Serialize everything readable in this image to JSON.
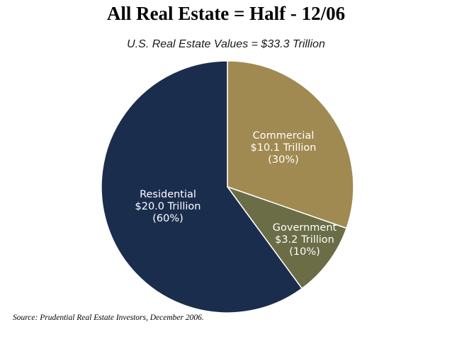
{
  "title": "All Real Estate = Half -  12/06",
  "subtitle": "U.S. Real Estate Values = $33.3 Trillion",
  "source": "Source: Prudential Real Estate Investors, December 2006.",
  "chart_data": {
    "type": "pie",
    "title": "All Real Estate = Half -  12/06",
    "subtitle": "U.S. Real Estate Values = $33.3 Trillion",
    "total": "$33.3 Trillion",
    "slices": [
      {
        "name": "Commercial",
        "value": 10.1,
        "percent": 30,
        "value_label": "$10.1 Trillion",
        "percent_label": "(30%)",
        "color": "#a08a52",
        "label_color": "#ffffff"
      },
      {
        "name": "Government",
        "value": 3.2,
        "percent": 10,
        "value_label": "$3.2 Trillion",
        "percent_label": "(10%)",
        "color": "#6a6d46",
        "label_color": "#ffffff"
      },
      {
        "name": "Residential",
        "value": 20.0,
        "percent": 60,
        "value_label": "$20.0 Trillion",
        "percent_label": "(60%)",
        "color": "#1b2d4d",
        "label_color": "#ffffff"
      }
    ],
    "start_angle_deg": 0,
    "direction": "clockwise",
    "edge_color": "#ffffff"
  }
}
